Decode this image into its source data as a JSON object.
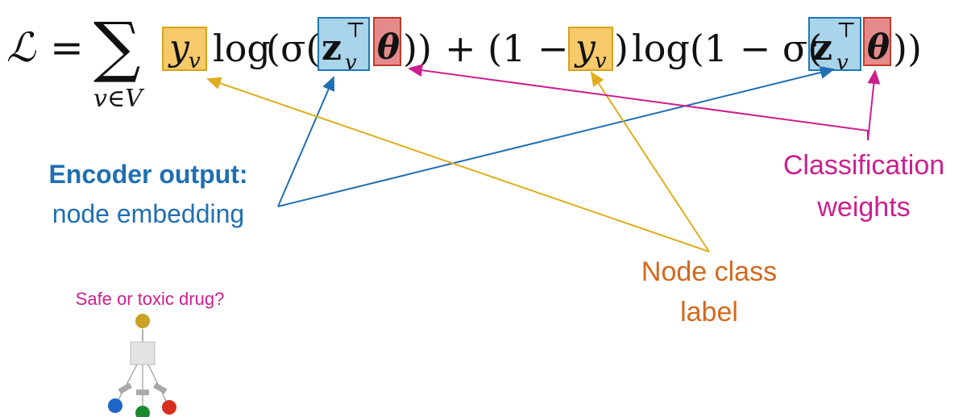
{
  "colors": {
    "encoder": "#1f6fb2",
    "label": "#e0ad1c",
    "label_text": "#d2691e",
    "weights": "#cc1f8f",
    "box_y_fill": "#f6c96a",
    "box_y_stroke": "#d7a31b",
    "box_z_fill": "#a9d4ea",
    "box_z_stroke": "#1f78b4",
    "box_theta_fill": "#e58a8a",
    "box_theta_stroke": "#c0392b",
    "node_root": "#c9a227",
    "node_blue": "#1f66c9",
    "node_green": "#1b8a2e",
    "node_red": "#d62f1f",
    "graph_box": "#e3e3e3",
    "graph_line": "#999999"
  },
  "equation": {
    "loss": "ℒ",
    "equals": "=",
    "sum": "∑",
    "sum_sub": "v∈V",
    "y": "y",
    "y_sub": "v",
    "log": "log",
    "open_sigma": "(σ(",
    "z": "z",
    "z_sub": "v",
    "transpose": "⊤",
    "theta": "θ",
    "close1": "))",
    "plus_open": "+ (1 −",
    "close_y": ")",
    "log2": "log(1 − σ(",
    "close2": "))"
  },
  "annotations": {
    "encoder_title": "Encoder output:",
    "encoder_sub": "node embedding",
    "class_label_line1": "Node class",
    "class_label_line2": "label",
    "weights_line1": "Classification",
    "weights_line2": "weights",
    "question": "Safe or toxic drug?"
  }
}
